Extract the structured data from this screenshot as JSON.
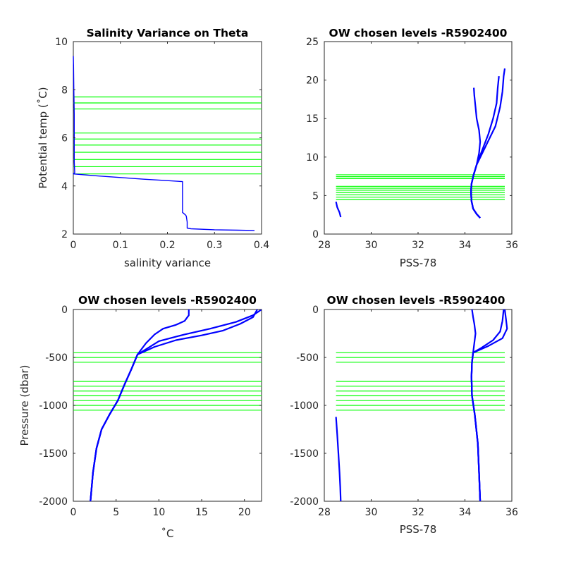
{
  "chart_data": [
    {
      "id": "p1",
      "type": "line",
      "title": "Salinity Variance on Theta",
      "xlabel": "salinity variance",
      "ylabel": "Potential temp (˚C)",
      "xlim": [
        0,
        0.4
      ],
      "ylim": [
        2,
        10
      ],
      "xticks": [
        0,
        0.1,
        0.2,
        0.3,
        0.4
      ],
      "xtick_labels": [
        "0",
        "0.1",
        "0.2",
        "0.3",
        "0.4"
      ],
      "yticks": [
        2,
        4,
        6,
        8,
        10
      ],
      "ytick_labels": [
        "2",
        "4",
        "6",
        "8",
        "10"
      ],
      "grid": false,
      "colors": {
        "profile": "#0000ff",
        "levels": "#00ff00"
      },
      "series": [
        {
          "values": [
            [
              0.0,
              9.4
            ],
            [
              0.0005,
              9.0
            ],
            [
              0.001,
              8.0
            ],
            [
              0.002,
              7.0
            ],
            [
              0.002,
              6.0
            ],
            [
              0.002,
              5.0
            ],
            [
              0.003,
              4.55
            ],
            [
              0.0,
              4.5
            ],
            [
              0.05,
              4.42
            ],
            [
              0.1,
              4.35
            ],
            [
              0.15,
              4.28
            ],
            [
              0.2,
              4.22
            ],
            [
              0.232,
              4.18
            ],
            [
              0.232,
              2.9
            ],
            [
              0.238,
              2.8
            ],
            [
              0.24,
              2.75
            ],
            [
              0.242,
              2.5
            ],
            [
              0.242,
              2.25
            ],
            [
              0.25,
              2.22
            ],
            [
              0.3,
              2.18
            ],
            [
              0.35,
              2.16
            ],
            [
              0.385,
              2.15
            ]
          ]
        }
      ],
      "hlines": [
        7.7,
        7.45,
        7.2,
        6.2,
        5.95,
        5.7,
        5.4,
        5.1,
        4.8,
        4.5
      ],
      "hline_span": [
        0,
        0.4
      ]
    },
    {
      "id": "p2",
      "type": "line",
      "title": "OW chosen levels -R5902400",
      "xlabel": "PSS-78",
      "ylabel": "",
      "xlim": [
        28,
        36
      ],
      "ylim": [
        0,
        25
      ],
      "xticks": [
        28,
        30,
        32,
        34,
        36
      ],
      "xtick_labels": [
        "28",
        "30",
        "32",
        "34",
        "36"
      ],
      "yticks": [
        0,
        5,
        10,
        15,
        20,
        25
      ],
      "ytick_labels": [
        "0",
        "5",
        "10",
        "15",
        "20",
        "25"
      ],
      "grid": false,
      "colors": {
        "profile": "#0000ff",
        "levels": "#00ff00"
      },
      "series": [
        {
          "values": [
            [
              28.5,
              4.2
            ],
            [
              28.55,
              3.5
            ],
            [
              28.65,
              2.8
            ],
            [
              28.7,
              2.2
            ]
          ]
        },
        {
          "values": [
            [
              34.65,
              2.1
            ],
            [
              34.5,
              2.6
            ],
            [
              34.35,
              3.3
            ],
            [
              34.28,
              4.3
            ],
            [
              34.26,
              5.5
            ],
            [
              34.28,
              6.5
            ],
            [
              34.36,
              7.6
            ],
            [
              34.5,
              9.0
            ],
            [
              34.6,
              10.5
            ],
            [
              34.65,
              12.0
            ],
            [
              34.6,
              13.5
            ],
            [
              34.5,
              15.0
            ],
            [
              34.45,
              16.5
            ],
            [
              34.4,
              18.0
            ],
            [
              34.38,
              19.0
            ]
          ]
        },
        {
          "values": [
            [
              34.65,
              2.1
            ],
            [
              34.5,
              2.6
            ],
            [
              34.35,
              3.3
            ],
            [
              34.28,
              4.3
            ],
            [
              34.26,
              5.5
            ],
            [
              34.28,
              6.5
            ],
            [
              34.36,
              7.6
            ],
            [
              34.5,
              9.0
            ],
            [
              34.75,
              11.0
            ],
            [
              35.0,
              13.0
            ],
            [
              35.2,
              15.0
            ],
            [
              35.35,
              17.0
            ],
            [
              35.4,
              19.0
            ],
            [
              35.45,
              20.5
            ]
          ]
        },
        {
          "values": [
            [
              34.65,
              2.1
            ],
            [
              34.5,
              2.6
            ],
            [
              34.35,
              3.3
            ],
            [
              34.28,
              4.3
            ],
            [
              34.26,
              5.5
            ],
            [
              34.28,
              6.5
            ],
            [
              34.36,
              7.6
            ],
            [
              34.5,
              9.0
            ],
            [
              34.9,
              11.5
            ],
            [
              35.3,
              14.0
            ],
            [
              35.5,
              16.5
            ],
            [
              35.6,
              18.5
            ],
            [
              35.65,
              20.5
            ],
            [
              35.7,
              21.5
            ]
          ]
        }
      ],
      "hlines": [
        7.7,
        7.45,
        7.2,
        6.2,
        5.95,
        5.7,
        5.4,
        5.1,
        4.8,
        4.5
      ],
      "hline_span": [
        28.5,
        35.7
      ]
    },
    {
      "id": "p3",
      "type": "line",
      "title": "OW chosen levels -R5902400",
      "xlabel": "˚C",
      "ylabel": "Pressure (dbar)",
      "xlim": [
        0,
        22
      ],
      "ylim": [
        -2000,
        0
      ],
      "xticks": [
        0,
        5,
        10,
        15,
        20
      ],
      "xtick_labels": [
        "0",
        "5",
        "10",
        "15",
        "20"
      ],
      "yticks": [
        -2000,
        -1500,
        -1000,
        -500,
        0
      ],
      "ytick_labels": [
        "-2000",
        "-1500",
        "-1000",
        "-500",
        "0"
      ],
      "grid": false,
      "colors": {
        "profile": "#0000ff",
        "levels": "#00ff00"
      },
      "series": [
        {
          "values": [
            [
              2.0,
              -2000
            ],
            [
              2.3,
              -1700
            ],
            [
              2.7,
              -1450
            ],
            [
              3.3,
              -1250
            ],
            [
              4.2,
              -1100
            ],
            [
              5.2,
              -950
            ],
            [
              6.0,
              -780
            ],
            [
              6.8,
              -620
            ],
            [
              7.5,
              -470
            ],
            [
              8.5,
              -350
            ],
            [
              9.5,
              -260
            ],
            [
              10.5,
              -200
            ],
            [
              12.0,
              -160
            ],
            [
              13.0,
              -120
            ],
            [
              13.5,
              -60
            ],
            [
              13.5,
              0
            ]
          ]
        },
        {
          "values": [
            [
              2.0,
              -2000
            ],
            [
              2.3,
              -1700
            ],
            [
              2.7,
              -1450
            ],
            [
              3.3,
              -1250
            ],
            [
              4.2,
              -1100
            ],
            [
              5.2,
              -950
            ],
            [
              6.0,
              -780
            ],
            [
              6.8,
              -620
            ],
            [
              7.5,
              -470
            ],
            [
              9.5,
              -390
            ],
            [
              12.0,
              -320
            ],
            [
              15.0,
              -270
            ],
            [
              17.5,
              -220
            ],
            [
              19.5,
              -150
            ],
            [
              21.0,
              -80
            ],
            [
              21.5,
              0
            ]
          ]
        },
        {
          "values": [
            [
              2.0,
              -2000
            ],
            [
              2.3,
              -1700
            ],
            [
              2.7,
              -1450
            ],
            [
              3.3,
              -1250
            ],
            [
              4.2,
              -1100
            ],
            [
              5.2,
              -950
            ],
            [
              6.0,
              -780
            ],
            [
              6.8,
              -620
            ],
            [
              7.5,
              -470
            ],
            [
              10.0,
              -330
            ],
            [
              13.0,
              -260
            ],
            [
              16.0,
              -200
            ],
            [
              19.0,
              -130
            ],
            [
              21.0,
              -60
            ],
            [
              22.0,
              0
            ]
          ]
        }
      ],
      "hlines": [
        -450,
        -500,
        -550,
        -750,
        -800,
        -850,
        -900,
        -950,
        -1000,
        -1050
      ],
      "hline_span": [
        0,
        22
      ]
    },
    {
      "id": "p4",
      "type": "line",
      "title": "OW chosen levels -R5902400",
      "xlabel": "PSS-78",
      "ylabel": "",
      "xlim": [
        28,
        36
      ],
      "ylim": [
        -2000,
        0
      ],
      "xticks": [
        28,
        30,
        32,
        34,
        36
      ],
      "xtick_labels": [
        "28",
        "30",
        "32",
        "34",
        "36"
      ],
      "yticks": [
        -2000,
        -1500,
        -1000,
        -500,
        0
      ],
      "ytick_labels": [
        "-2000",
        "-1500",
        "-1000",
        "-500",
        "0"
      ],
      "grid": false,
      "colors": {
        "profile": "#0000ff",
        "levels": "#00ff00"
      },
      "series": [
        {
          "values": [
            [
              28.5,
              -1120
            ],
            [
              28.55,
              -1300
            ],
            [
              28.6,
              -1500
            ],
            [
              28.65,
              -1700
            ],
            [
              28.68,
              -1850
            ],
            [
              28.7,
              -2000
            ]
          ]
        },
        {
          "values": [
            [
              34.65,
              -2000
            ],
            [
              34.6,
              -1700
            ],
            [
              34.55,
              -1400
            ],
            [
              34.42,
              -1100
            ],
            [
              34.3,
              -900
            ],
            [
              34.28,
              -700
            ],
            [
              34.3,
              -550
            ],
            [
              34.35,
              -450
            ],
            [
              34.4,
              -350
            ],
            [
              34.45,
              -250
            ],
            [
              34.4,
              -150
            ],
            [
              34.35,
              -80
            ],
            [
              34.3,
              0
            ]
          ]
        },
        {
          "values": [
            [
              34.65,
              -2000
            ],
            [
              34.6,
              -1700
            ],
            [
              34.55,
              -1400
            ],
            [
              34.42,
              -1100
            ],
            [
              34.3,
              -900
            ],
            [
              34.28,
              -700
            ],
            [
              34.3,
              -550
            ],
            [
              34.35,
              -450
            ],
            [
              34.7,
              -400
            ],
            [
              35.2,
              -320
            ],
            [
              35.5,
              -230
            ],
            [
              35.6,
              -120
            ],
            [
              35.65,
              0
            ]
          ]
        },
        {
          "values": [
            [
              34.65,
              -2000
            ],
            [
              34.6,
              -1700
            ],
            [
              34.55,
              -1400
            ],
            [
              34.42,
              -1100
            ],
            [
              34.3,
              -900
            ],
            [
              34.28,
              -700
            ],
            [
              34.3,
              -550
            ],
            [
              34.35,
              -450
            ],
            [
              35.0,
              -380
            ],
            [
              35.6,
              -300
            ],
            [
              35.8,
              -200
            ],
            [
              35.75,
              -100
            ],
            [
              35.7,
              0
            ]
          ]
        }
      ],
      "hlines": [
        -450,
        -500,
        -550,
        -750,
        -800,
        -850,
        -900,
        -950,
        -1000,
        -1050
      ],
      "hline_span": [
        28.5,
        35.7
      ]
    }
  ]
}
